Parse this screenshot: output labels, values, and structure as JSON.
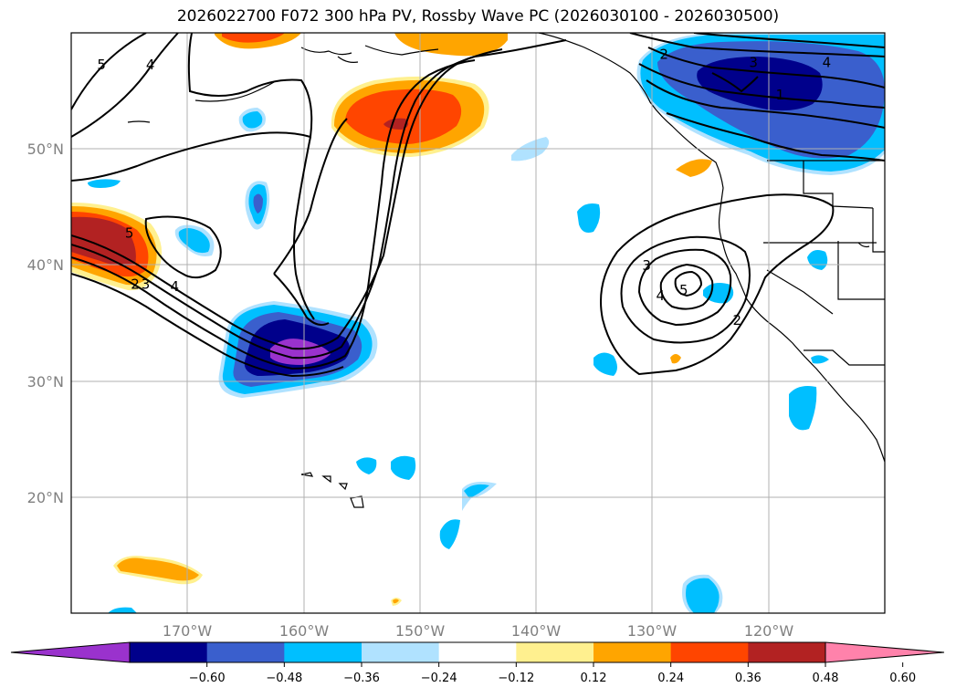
{
  "title": "2026022700 F072 300 hPa PV, Rossby Wave PC (2026030100 - 2026030500)",
  "map": {
    "lon_range": [
      -180,
      -110
    ],
    "lat_range": [
      10,
      60
    ],
    "lat_ticks": [
      {
        "value": 50,
        "label": "50°N"
      },
      {
        "value": 40,
        "label": "40°N"
      },
      {
        "value": 30,
        "label": "30°N"
      },
      {
        "value": 20,
        "label": "20°N"
      }
    ],
    "lon_ticks": [
      {
        "value": -170,
        "label": "170°W"
      },
      {
        "value": -160,
        "label": "160°W"
      },
      {
        "value": -150,
        "label": "150°W"
      },
      {
        "value": -140,
        "label": "140°W"
      },
      {
        "value": -130,
        "label": "130°W"
      },
      {
        "value": -120,
        "label": "120°W"
      }
    ],
    "contour_labels": [
      {
        "text": "5",
        "lon": -177.4,
        "lat": 57.2
      },
      {
        "text": "4",
        "lon": -173.2,
        "lat": 57.2
      },
      {
        "text": "5",
        "lon": -175,
        "lat": 42.7
      },
      {
        "text": "3",
        "lon": -173.6,
        "lat": 38.3
      },
      {
        "text": "2",
        "lon": -174.5,
        "lat": 38.3
      },
      {
        "text": "4",
        "lon": -171.1,
        "lat": 38.1
      },
      {
        "text": "2",
        "lon": -129,
        "lat": 58.1
      },
      {
        "text": "3",
        "lon": -121.3,
        "lat": 57.4
      },
      {
        "text": "4",
        "lon": -115,
        "lat": 57.4
      },
      {
        "text": "1",
        "lon": -119,
        "lat": 54.6
      },
      {
        "text": "3",
        "lon": -130.5,
        "lat": 39.9
      },
      {
        "text": "5",
        "lon": -127.3,
        "lat": 37.8
      },
      {
        "text": "4",
        "lon": -129.3,
        "lat": 37.3
      },
      {
        "text": "2",
        "lon": -122.7,
        "lat": 35.2
      }
    ]
  },
  "colorbar": {
    "levels": [
      "−0.60",
      "−0.48",
      "−0.36",
      "−0.24",
      "−0.12",
      "0.12",
      "0.24",
      "0.36",
      "0.48",
      "0.60"
    ],
    "colors": [
      "#9a32cd",
      "#00008b",
      "#3a5fcd",
      "#00bfff",
      "#b0e2ff",
      "#ffffff",
      "#fff08f",
      "#ffa500",
      "#ff4500",
      "#b22222",
      "#ff82ab"
    ]
  }
}
